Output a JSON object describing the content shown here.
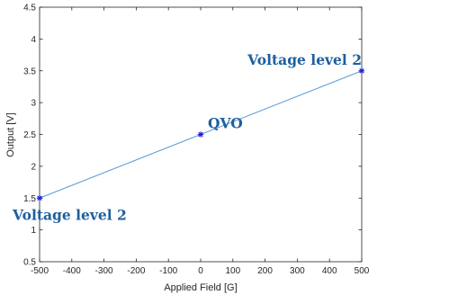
{
  "chart_data": {
    "type": "line",
    "xlabel": "Applied Field [G]",
    "ylabel": "Output [V]",
    "xlim": [
      -500,
      500
    ],
    "ylim": [
      0.5,
      4.5
    ],
    "xticks": [
      "-500",
      "-400",
      "-300",
      "-200",
      "-100",
      "0",
      "100",
      "200",
      "300",
      "400",
      "500"
    ],
    "yticks": [
      "0.5",
      "1",
      "1.5",
      "2",
      "2.5",
      "3",
      "3.5",
      "4",
      "4.5"
    ],
    "grid": false,
    "series": [
      {
        "x": [
          -500,
          0,
          500
        ],
        "y": [
          1.5,
          2.5,
          3.5
        ],
        "color": "#5b9bd5",
        "marker": "asterisk",
        "marker_color": "#1f1fd6"
      }
    ],
    "annotations": [
      {
        "text": "Voltage level 2",
        "x": -500,
        "y": 1.5,
        "placement": "below-right"
      },
      {
        "text": "QVO",
        "x": 0,
        "y": 2.5,
        "placement": "above-right"
      },
      {
        "text": "Voltage level 2",
        "x": 500,
        "y": 3.5,
        "placement": "above-left"
      }
    ]
  }
}
